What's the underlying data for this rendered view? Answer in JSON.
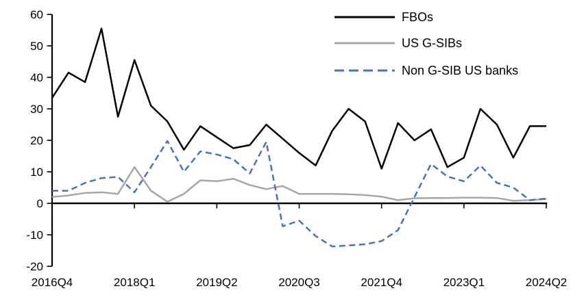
{
  "chart_data": {
    "type": "line",
    "title": "",
    "xlabel": "",
    "ylabel": "",
    "grid": false,
    "legend_position": "top-right",
    "ylim": [
      -20,
      60
    ],
    "ytick_step": 10,
    "ytick_labels": [
      "60",
      "50",
      "40",
      "30",
      "20",
      "10",
      "0",
      "-10",
      "-20"
    ],
    "xtick_labels": [
      "2016Q4",
      "2018Q1",
      "2019Q2",
      "2020Q3",
      "2021Q4",
      "2023Q1",
      "2024Q2"
    ],
    "xtick_every_n_points": 5,
    "x_quarters": [
      "2016Q4",
      "2017Q1",
      "2017Q2",
      "2017Q3",
      "2017Q4",
      "2018Q1",
      "2018Q2",
      "2018Q3",
      "2018Q4",
      "2019Q1",
      "2019Q2",
      "2019Q3",
      "2019Q4",
      "2020Q1",
      "2020Q2",
      "2020Q3",
      "2020Q4",
      "2021Q1",
      "2021Q2",
      "2021Q3",
      "2021Q4",
      "2022Q1",
      "2022Q2",
      "2022Q3",
      "2022Q4",
      "2023Q1",
      "2023Q2",
      "2023Q3",
      "2023Q4",
      "2024Q1",
      "2024Q2"
    ],
    "series": [
      {
        "name": "FBOs",
        "color": "#000000",
        "style": "solid",
        "values": [
          33.5,
          41.5,
          38.5,
          55.5,
          27.5,
          45.5,
          31,
          26,
          17,
          24.5,
          21,
          17.5,
          18.5,
          25,
          20.5,
          16,
          12,
          23,
          30,
          26,
          11,
          25.5,
          20,
          23.5,
          11.5,
          14.5,
          30,
          25,
          14.5,
          24.5,
          24.5
        ]
      },
      {
        "name": "US G-SIBs",
        "color": "#A6A6A6",
        "style": "solid",
        "values": [
          2,
          2.5,
          3.3,
          3.5,
          3,
          11.5,
          4,
          0.5,
          3,
          7.3,
          7,
          7.8,
          5.8,
          4.5,
          5.5,
          3,
          3,
          3,
          2.9,
          2.6,
          2.1,
          1,
          1.6,
          1.7,
          1.7,
          1.8,
          1.8,
          1.7,
          0.8,
          1,
          1.4
        ]
      },
      {
        "name": "Non G-SIB US banks",
        "color": "#4472C4",
        "style": "dashed",
        "values": [
          4,
          4,
          6.5,
          8,
          8.4,
          3.5,
          11.5,
          19.8,
          10,
          16.5,
          15.5,
          14,
          9.5,
          19.5,
          -7.3,
          -5.5,
          -10.4,
          -13.7,
          -13.4,
          -13,
          -12,
          -8.5,
          2,
          12.5,
          8.5,
          7,
          12,
          6.5,
          5,
          1,
          1.5
        ]
      }
    ],
    "axis_color": "#000000",
    "background_color": "#FFFFFF"
  }
}
